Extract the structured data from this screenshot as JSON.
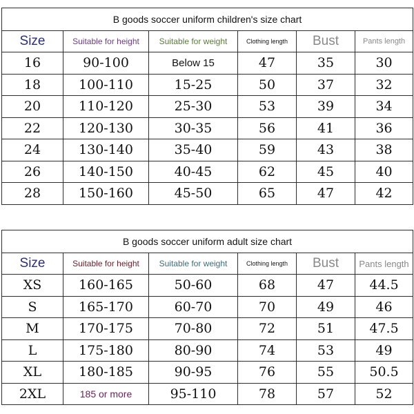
{
  "children_chart": {
    "title": "B goods soccer uniform children's size chart",
    "headers": [
      "Size",
      "Suitable for height",
      "Suitable for weight",
      "Clothing length",
      "Bust",
      "Pants length"
    ],
    "rows": [
      [
        "16",
        "90-100",
        "Below 15",
        "47",
        "35",
        "30"
      ],
      [
        "18",
        "100-110",
        "15-25",
        "50",
        "37",
        "32"
      ],
      [
        "20",
        "110-120",
        "25-30",
        "53",
        "39",
        "34"
      ],
      [
        "22",
        "120-130",
        "30-35",
        "56",
        "41",
        "36"
      ],
      [
        "24",
        "130-140",
        "35-40",
        "59",
        "43",
        "38"
      ],
      [
        "26",
        "140-150",
        "40-45",
        "62",
        "45",
        "40"
      ],
      [
        "28",
        "150-160",
        "45-50",
        "65",
        "47",
        "42"
      ]
    ]
  },
  "adult_chart": {
    "title": "B goods soccer uniform adult size chart",
    "headers": [
      "Size",
      "Suitable for height",
      "Suitable for weight",
      "Clothing length",
      "Bust",
      "Pants length"
    ],
    "rows": [
      [
        "XS",
        "160-165",
        "50-60",
        "68",
        "47",
        "44.5"
      ],
      [
        "S",
        "165-170",
        "60-70",
        "70",
        "49",
        "46"
      ],
      [
        "M",
        "170-175",
        "70-80",
        "72",
        "51",
        "47.5"
      ],
      [
        "L",
        "175-180",
        "80-90",
        "74",
        "53",
        "49"
      ],
      [
        "XL",
        "180-185",
        "90-95",
        "76",
        "55",
        "50.5"
      ],
      [
        "2XL",
        "185 or more",
        "95-110",
        "78",
        "57",
        "52"
      ]
    ]
  }
}
